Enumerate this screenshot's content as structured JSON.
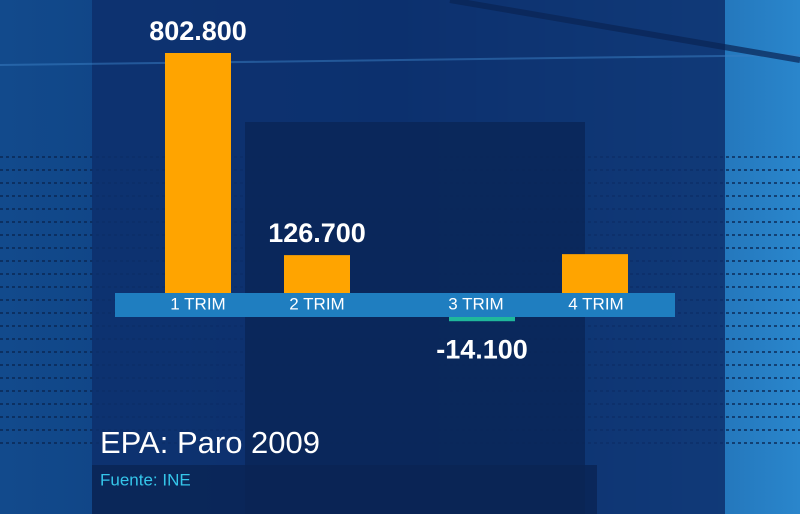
{
  "chart_data": {
    "type": "bar",
    "title": "EPA: Paro 2009",
    "source": "Fuente: INE",
    "categories": [
      "1 TRIM",
      "2 TRIM",
      "3 TRIM",
      "4 TRIM"
    ],
    "values": [
      802800,
      126700,
      -14100,
      130000
    ],
    "value_labels": [
      "802.800",
      "126.700",
      "-14.100",
      null
    ],
    "color": "#ffa400",
    "negative_color": "#1fb89c"
  }
}
